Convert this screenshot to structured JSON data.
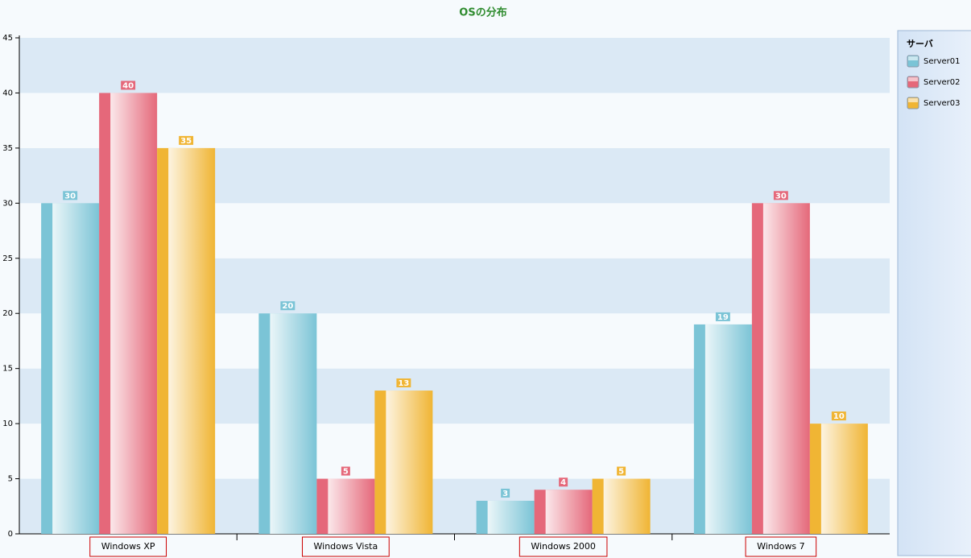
{
  "chart_data": {
    "type": "bar",
    "title": "OSの分布",
    "categories": [
      "Windows XP",
      "Windows Vista",
      "Windows 2000",
      "Windows 7"
    ],
    "series": [
      {
        "name": "Server01",
        "color": "#7bc4d6",
        "values": [
          30,
          20,
          3,
          19
        ]
      },
      {
        "name": "Server02",
        "color": "#e5687a",
        "values": [
          40,
          5,
          4,
          30
        ]
      },
      {
        "name": "Server03",
        "color": "#f0b534",
        "values": [
          35,
          13,
          5,
          10
        ]
      }
    ],
    "ylim": [
      0,
      45
    ],
    "yticks": [
      0,
      5,
      10,
      15,
      20,
      25,
      30,
      35,
      40,
      45
    ],
    "grid": true,
    "legend_title": "サーバ",
    "legend_position": "right"
  }
}
